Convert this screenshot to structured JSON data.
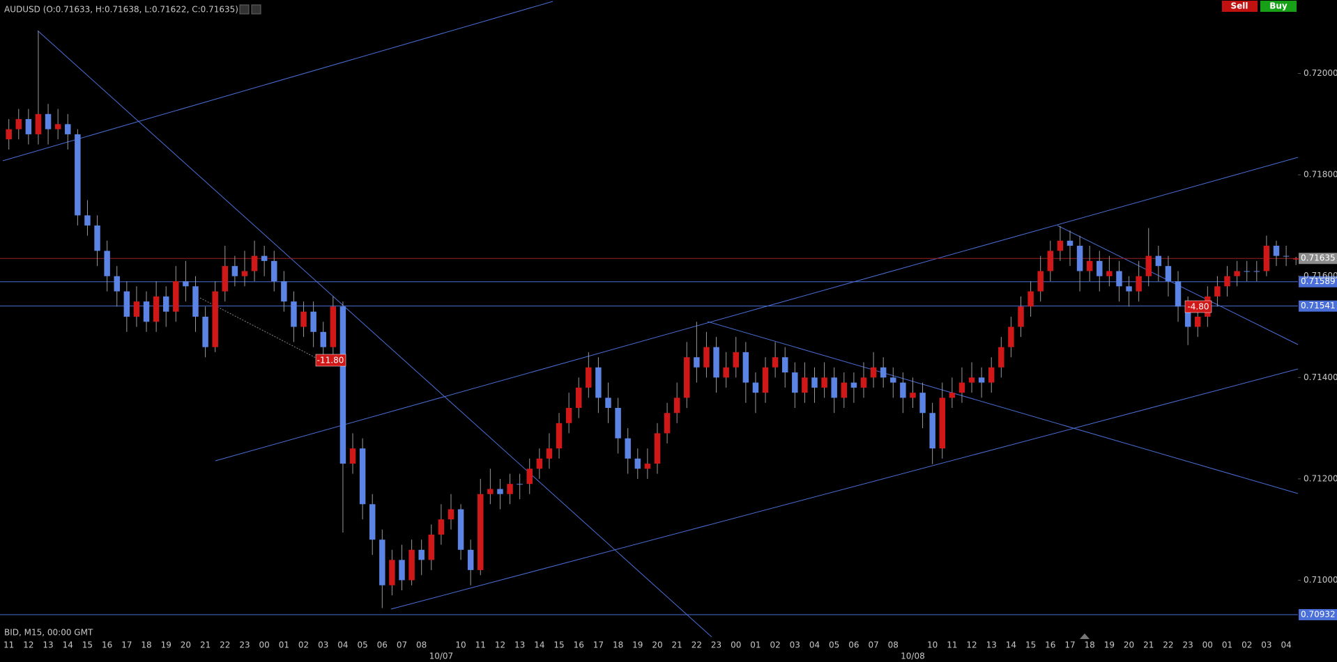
{
  "chart_data": {
    "type": "candlestick",
    "title": "AUDUSD (O:0.71633, H:0.71638, L:0.71622, C:0.71635)",
    "footer": "BID, M15, 00:00 GMT",
    "buttons": [
      "Sell",
      "Buy"
    ],
    "annotations": [
      "-11.80",
      "-4.80"
    ],
    "up_color": "#d01818",
    "down_color": "#5b84e4",
    "grid": false,
    "ylim": [
      0.7091,
      0.72145
    ],
    "yticks": [
      {
        "value": 0.72,
        "label": "0.72000"
      },
      {
        "value": 0.718,
        "label": "0.71800"
      },
      {
        "value": 0.716,
        "label": "0.71600"
      },
      {
        "value": 0.714,
        "label": "0.71400"
      },
      {
        "value": 0.712,
        "label": "0.71200"
      },
      {
        "value": 0.71,
        "label": "0.71000"
      }
    ],
    "levels": [
      {
        "value": 0.71635,
        "label": "0.71635",
        "color": "#9a2020",
        "label_color": "#8c8c8c"
      },
      {
        "value": 0.71589,
        "label": "0.71589",
        "color": "#4a6fd8",
        "label_color": "#4a6fd8"
      },
      {
        "value": 0.71541,
        "label": "0.71541",
        "color": "#4a6fd8",
        "label_color": "#4a6fd8"
      },
      {
        "value": 0.70932,
        "label": "0.70932",
        "color": "#4a6fd8",
        "label_color": "#4a6fd8"
      }
    ],
    "xlim": [
      -0.9,
      131.2
    ],
    "xticks": [
      {
        "value": 0,
        "label": "11"
      },
      {
        "value": 2,
        "label": "12"
      },
      {
        "value": 4,
        "label": "13"
      },
      {
        "value": 6,
        "label": "14"
      },
      {
        "value": 8,
        "label": "15"
      },
      {
        "value": 10,
        "label": "16"
      },
      {
        "value": 12,
        "label": "17"
      },
      {
        "value": 14,
        "label": "18"
      },
      {
        "value": 16,
        "label": "19"
      },
      {
        "value": 18,
        "label": "20"
      },
      {
        "value": 20,
        "label": "21"
      },
      {
        "value": 22,
        "label": "22"
      },
      {
        "value": 24,
        "label": "23"
      },
      {
        "value": 26,
        "label": "00"
      },
      {
        "value": 28,
        "label": "01"
      },
      {
        "value": 30,
        "label": "02"
      },
      {
        "value": 32,
        "label": "03"
      },
      {
        "value": 34,
        "label": "04"
      },
      {
        "value": 36,
        "label": "05"
      },
      {
        "value": 38,
        "label": "06"
      },
      {
        "value": 40,
        "label": "07"
      },
      {
        "value": 42,
        "label": "08"
      },
      {
        "value": 46,
        "label": "10"
      },
      {
        "value": 48,
        "label": "11"
      },
      {
        "value": 50,
        "label": "12"
      },
      {
        "value": 52,
        "label": "13"
      },
      {
        "value": 54,
        "label": "14"
      },
      {
        "value": 56,
        "label": "15"
      },
      {
        "value": 58,
        "label": "16"
      },
      {
        "value": 60,
        "label": "17"
      },
      {
        "value": 62,
        "label": "18"
      },
      {
        "value": 64,
        "label": "19"
      },
      {
        "value": 66,
        "label": "20"
      },
      {
        "value": 68,
        "label": "21"
      },
      {
        "value": 70,
        "label": "22"
      },
      {
        "value": 72,
        "label": "23"
      },
      {
        "value": 74,
        "label": "00"
      },
      {
        "value": 76,
        "label": "01"
      },
      {
        "value": 78,
        "label": "02"
      },
      {
        "value": 80,
        "label": "03"
      },
      {
        "value": 82,
        "label": "04"
      },
      {
        "value": 84,
        "label": "05"
      },
      {
        "value": 86,
        "label": "06"
      },
      {
        "value": 88,
        "label": "07"
      },
      {
        "value": 90,
        "label": "08"
      },
      {
        "value": 94,
        "label": "10"
      },
      {
        "value": 96,
        "label": "11"
      },
      {
        "value": 98,
        "label": "12"
      },
      {
        "value": 100,
        "label": "13"
      },
      {
        "value": 102,
        "label": "14"
      },
      {
        "value": 104,
        "label": "15"
      },
      {
        "value": 106,
        "label": "16"
      },
      {
        "value": 108,
        "label": "17"
      },
      {
        "value": 110,
        "label": "18"
      },
      {
        "value": 112,
        "label": "19"
      },
      {
        "value": 114,
        "label": "20"
      },
      {
        "value": 116,
        "label": "21"
      },
      {
        "value": 118,
        "label": "22"
      },
      {
        "value": 120,
        "label": "23"
      },
      {
        "value": 122,
        "label": "00"
      },
      {
        "value": 124,
        "label": "01"
      },
      {
        "value": 126,
        "label": "02"
      },
      {
        "value": 128,
        "label": "03"
      },
      {
        "value": 130,
        "label": "04"
      }
    ],
    "date_labels": [
      {
        "value": 44,
        "label": "10/07"
      },
      {
        "value": 92,
        "label": "10/08"
      }
    ],
    "ohlc": [
      [
        0.7187,
        0.7191,
        0.7185,
        0.7189
      ],
      [
        0.7189,
        0.7193,
        0.7187,
        0.7191
      ],
      [
        0.7191,
        0.7193,
        0.7186,
        0.7188
      ],
      [
        0.7188,
        0.72084,
        0.7186,
        0.7192
      ],
      [
        0.7192,
        0.7194,
        0.7186,
        0.7189
      ],
      [
        0.7189,
        0.7193,
        0.7187,
        0.719
      ],
      [
        0.719,
        0.7192,
        0.7185,
        0.7188
      ],
      [
        0.7188,
        0.7189,
        0.717,
        0.7172
      ],
      [
        0.7172,
        0.7175,
        0.7168,
        0.717
      ],
      [
        0.717,
        0.7172,
        0.7162,
        0.7165
      ],
      [
        0.7165,
        0.7167,
        0.7157,
        0.716
      ],
      [
        0.716,
        0.7162,
        0.7154,
        0.7157
      ],
      [
        0.7157,
        0.7159,
        0.7149,
        0.7152
      ],
      [
        0.7152,
        0.7158,
        0.715,
        0.7155
      ],
      [
        0.7155,
        0.7157,
        0.7149,
        0.7151
      ],
      [
        0.7151,
        0.7159,
        0.7149,
        0.7156
      ],
      [
        0.7156,
        0.7158,
        0.715,
        0.7153
      ],
      [
        0.7153,
        0.7162,
        0.7151,
        0.7159
      ],
      [
        0.7159,
        0.7163,
        0.7155,
        0.7158
      ],
      [
        0.7158,
        0.716,
        0.7149,
        0.7152
      ],
      [
        0.7152,
        0.7154,
        0.7144,
        0.7146
      ],
      [
        0.7146,
        0.7159,
        0.7145,
        0.7157
      ],
      [
        0.7157,
        0.7166,
        0.7155,
        0.7162
      ],
      [
        0.7162,
        0.7164,
        0.7158,
        0.716
      ],
      [
        0.716,
        0.7165,
        0.7158,
        0.7161
      ],
      [
        0.7161,
        0.7167,
        0.7159,
        0.7164
      ],
      [
        0.7164,
        0.7166,
        0.716,
        0.7163
      ],
      [
        0.7163,
        0.7165,
        0.7157,
        0.7159
      ],
      [
        0.7159,
        0.7161,
        0.7153,
        0.7155
      ],
      [
        0.7155,
        0.7157,
        0.7147,
        0.715
      ],
      [
        0.715,
        0.7155,
        0.7148,
        0.7153
      ],
      [
        0.7153,
        0.7155,
        0.7146,
        0.7149
      ],
      [
        0.7149,
        0.7151,
        0.7143,
        0.7146
      ],
      [
        0.7146,
        0.7156,
        0.7144,
        0.7154
      ],
      [
        0.7154,
        0.7155,
        0.71094,
        0.7123
      ],
      [
        0.7123,
        0.7129,
        0.7121,
        0.7126
      ],
      [
        0.7126,
        0.7128,
        0.7112,
        0.7115
      ],
      [
        0.7115,
        0.7117,
        0.7105,
        0.7108
      ],
      [
        0.7108,
        0.711,
        0.70945,
        0.7099
      ],
      [
        0.7099,
        0.7106,
        0.7097,
        0.7104
      ],
      [
        0.7104,
        0.7107,
        0.7098,
        0.71
      ],
      [
        0.71,
        0.7108,
        0.7099,
        0.7106
      ],
      [
        0.7106,
        0.7108,
        0.7101,
        0.7104
      ],
      [
        0.7104,
        0.7111,
        0.7102,
        0.7109
      ],
      [
        0.7109,
        0.7115,
        0.7107,
        0.7112
      ],
      [
        0.7112,
        0.7117,
        0.711,
        0.7114
      ],
      [
        0.7114,
        0.7115,
        0.7104,
        0.7106
      ],
      [
        0.7106,
        0.7108,
        0.7099,
        0.7102
      ],
      [
        0.7102,
        0.712,
        0.7101,
        0.7117
      ],
      [
        0.7117,
        0.7122,
        0.7115,
        0.7118
      ],
      [
        0.7118,
        0.712,
        0.7114,
        0.7117
      ],
      [
        0.7117,
        0.7121,
        0.7115,
        0.7119
      ],
      [
        0.7119,
        0.7121,
        0.7116,
        0.7119
      ],
      [
        0.7119,
        0.7124,
        0.7117,
        0.7122
      ],
      [
        0.7122,
        0.7126,
        0.712,
        0.7124
      ],
      [
        0.7124,
        0.7129,
        0.7122,
        0.7126
      ],
      [
        0.7126,
        0.7133,
        0.7124,
        0.7131
      ],
      [
        0.7131,
        0.7137,
        0.7129,
        0.7134
      ],
      [
        0.7134,
        0.714,
        0.7132,
        0.7138
      ],
      [
        0.7138,
        0.7145,
        0.7136,
        0.7142
      ],
      [
        0.7142,
        0.7144,
        0.7133,
        0.7136
      ],
      [
        0.7136,
        0.7139,
        0.7131,
        0.7134
      ],
      [
        0.7134,
        0.7136,
        0.7125,
        0.7128
      ],
      [
        0.7128,
        0.713,
        0.7121,
        0.7124
      ],
      [
        0.7124,
        0.7126,
        0.712,
        0.7122
      ],
      [
        0.7122,
        0.7126,
        0.712,
        0.7123
      ],
      [
        0.7123,
        0.7131,
        0.7121,
        0.7129
      ],
      [
        0.7129,
        0.7135,
        0.7127,
        0.7133
      ],
      [
        0.7133,
        0.7139,
        0.7131,
        0.7136
      ],
      [
        0.7136,
        0.7147,
        0.7134,
        0.7144
      ],
      [
        0.7144,
        0.7151,
        0.7139,
        0.7142
      ],
      [
        0.7142,
        0.7149,
        0.714,
        0.7146
      ],
      [
        0.7146,
        0.7148,
        0.7137,
        0.714
      ],
      [
        0.714,
        0.7145,
        0.7138,
        0.7142
      ],
      [
        0.7142,
        0.7148,
        0.714,
        0.7145
      ],
      [
        0.7145,
        0.7147,
        0.7135,
        0.7139
      ],
      [
        0.7139,
        0.7141,
        0.7133,
        0.7137
      ],
      [
        0.7137,
        0.7144,
        0.7135,
        0.7142
      ],
      [
        0.7142,
        0.7147,
        0.714,
        0.7144
      ],
      [
        0.7144,
        0.7146,
        0.7138,
        0.7141
      ],
      [
        0.7141,
        0.7143,
        0.7134,
        0.7137
      ],
      [
        0.7137,
        0.7143,
        0.7135,
        0.714
      ],
      [
        0.714,
        0.7142,
        0.7135,
        0.7138
      ],
      [
        0.7138,
        0.7143,
        0.7136,
        0.714
      ],
      [
        0.714,
        0.7142,
        0.7133,
        0.7136
      ],
      [
        0.7136,
        0.7141,
        0.7134,
        0.7139
      ],
      [
        0.7139,
        0.7141,
        0.7135,
        0.7138
      ],
      [
        0.7138,
        0.7143,
        0.7136,
        0.714
      ],
      [
        0.714,
        0.7145,
        0.7138,
        0.7142
      ],
      [
        0.7142,
        0.7144,
        0.7138,
        0.714
      ],
      [
        0.714,
        0.7142,
        0.7136,
        0.7139
      ],
      [
        0.7139,
        0.7141,
        0.7133,
        0.7136
      ],
      [
        0.7136,
        0.714,
        0.7134,
        0.7137
      ],
      [
        0.7137,
        0.7139,
        0.713,
        0.7133
      ],
      [
        0.7133,
        0.7135,
        0.71229,
        0.7126
      ],
      [
        0.7126,
        0.7139,
        0.7124,
        0.7136
      ],
      [
        0.7136,
        0.714,
        0.7134,
        0.7137
      ],
      [
        0.7137,
        0.7142,
        0.7135,
        0.7139
      ],
      [
        0.7139,
        0.7143,
        0.7137,
        0.714
      ],
      [
        0.714,
        0.7142,
        0.7136,
        0.7139
      ],
      [
        0.7139,
        0.7144,
        0.7137,
        0.7142
      ],
      [
        0.7142,
        0.7148,
        0.714,
        0.7146
      ],
      [
        0.7146,
        0.7152,
        0.7144,
        0.715
      ],
      [
        0.715,
        0.7156,
        0.7148,
        0.7154
      ],
      [
        0.7154,
        0.7159,
        0.7152,
        0.7157
      ],
      [
        0.7157,
        0.7164,
        0.7155,
        0.7161
      ],
      [
        0.7161,
        0.7167,
        0.7159,
        0.7165
      ],
      [
        0.7165,
        0.71699,
        0.7163,
        0.7167
      ],
      [
        0.7167,
        0.7169,
        0.7162,
        0.7166
      ],
      [
        0.7166,
        0.7168,
        0.7157,
        0.7161
      ],
      [
        0.7161,
        0.7166,
        0.7159,
        0.7163
      ],
      [
        0.7163,
        0.7165,
        0.7157,
        0.716
      ],
      [
        0.716,
        0.7164,
        0.7158,
        0.7161
      ],
      [
        0.7161,
        0.7163,
        0.7155,
        0.7158
      ],
      [
        0.7158,
        0.716,
        0.7154,
        0.7157
      ],
      [
        0.7157,
        0.7163,
        0.7155,
        0.716
      ],
      [
        0.716,
        0.71695,
        0.7158,
        0.7164
      ],
      [
        0.7164,
        0.7166,
        0.7159,
        0.7162
      ],
      [
        0.7162,
        0.7164,
        0.7156,
        0.7159
      ],
      [
        0.7159,
        0.7161,
        0.7151,
        0.7154
      ],
      [
        0.7154,
        0.7156,
        0.71464,
        0.715
      ],
      [
        0.715,
        0.7155,
        0.7148,
        0.7152
      ],
      [
        0.7152,
        0.7158,
        0.715,
        0.7156
      ],
      [
        0.7156,
        0.716,
        0.7154,
        0.7158
      ],
      [
        0.7158,
        0.7162,
        0.7156,
        0.716
      ],
      [
        0.716,
        0.7163,
        0.7158,
        0.7161
      ],
      [
        0.7161,
        0.7163,
        0.7159,
        0.7161
      ],
      [
        0.7161,
        0.7163,
        0.7159,
        0.7161
      ],
      [
        0.7161,
        0.7168,
        0.716,
        0.7166
      ],
      [
        0.7166,
        0.7167,
        0.7162,
        0.7164
      ],
      [
        0.7164,
        0.7166,
        0.7162,
        0.7164
      ],
      [
        0.71633,
        0.71638,
        0.71622,
        0.71635
      ]
    ]
  }
}
